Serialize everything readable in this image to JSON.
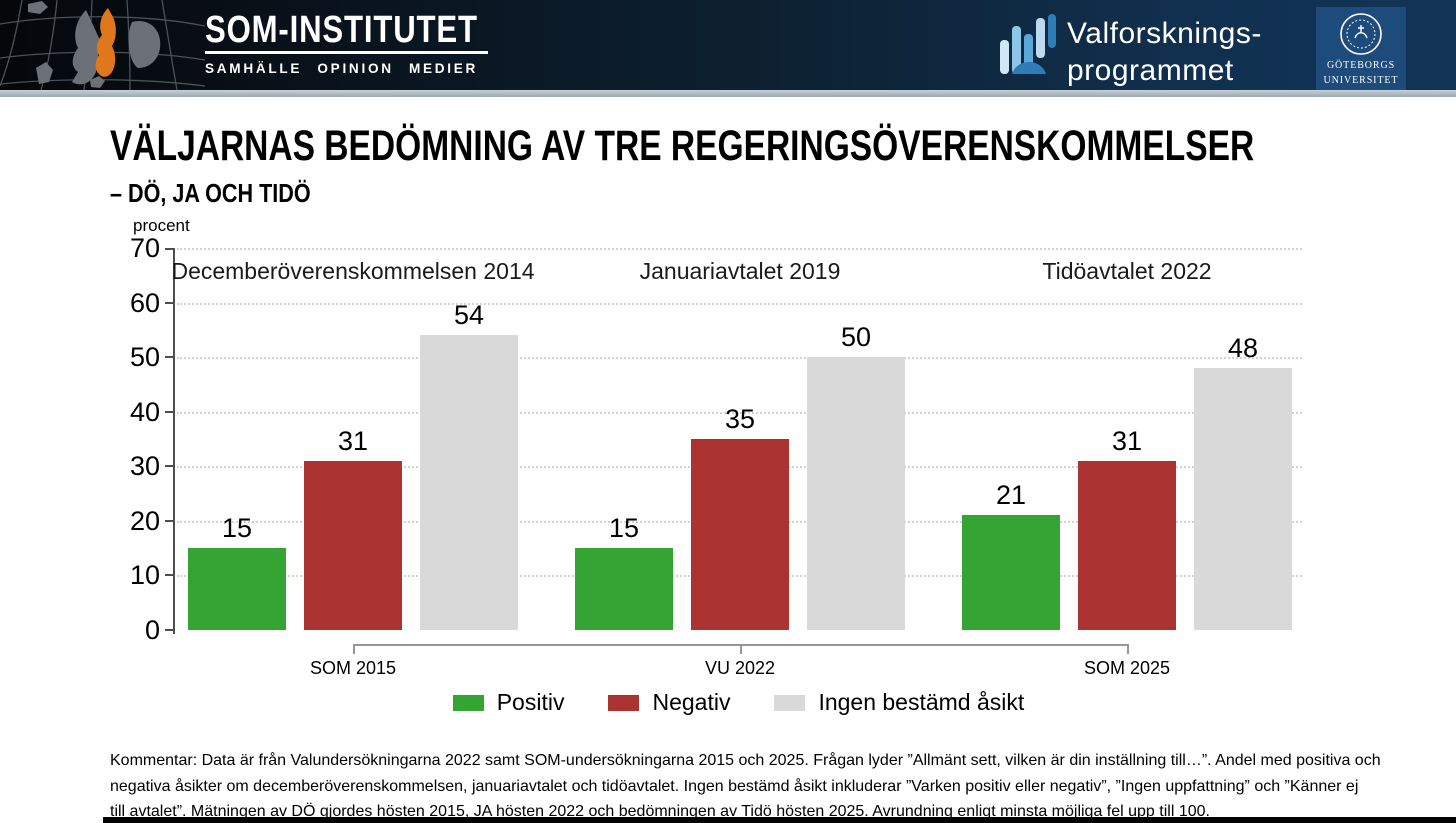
{
  "header": {
    "logo": {
      "title": "SOM-INSTITUTET",
      "subtitle": "SAMHÄLLE OPINION MEDIER"
    },
    "program": {
      "line1": "Valforsknings-",
      "line2": "programmet"
    },
    "university": {
      "line1": "GÖTEBORGS",
      "line2": "UNIVERSITET"
    }
  },
  "title": {
    "main": "VÄLJARNAS BEDÖMNING AV TRE REGERINGSÖVERENSKOMMELSER",
    "subtitle": "– DÖ, JA OCH TIDÖ"
  },
  "chart_data": {
    "type": "bar",
    "unit_label": "procent",
    "ylim": [
      0,
      70
    ],
    "yticks": [
      0,
      10,
      20,
      30,
      40,
      50,
      60,
      70
    ],
    "grid": "dotted horizontal gridlines at every 10",
    "data_labels": true,
    "legend_position": "bottom",
    "groups": [
      {
        "title": "Decemberöverenskommelsen 2014",
        "axis_label": "SOM 2015"
      },
      {
        "title": "Januariavtalet 2019",
        "axis_label": "VU 2022"
      },
      {
        "title": "Tidöavtalet 2022",
        "axis_label": "SOM 2025"
      }
    ],
    "series": [
      {
        "name": "Positiv",
        "color": "#34a533",
        "values": [
          15,
          15,
          21
        ]
      },
      {
        "name": "Negativ",
        "color": "#ab3332",
        "values": [
          31,
          35,
          31
        ]
      },
      {
        "name": "Ingen bestämd åsikt",
        "color": "#d9d9d9",
        "values": [
          54,
          50,
          48
        ]
      }
    ]
  },
  "footer": {
    "lines": [
      "Kommentar: Data är från Valundersökningarna 2022 samt SOM-undersökningarna 2015 och 2025. Frågan lyder ”Allmänt sett, vilken är din inställning till…”. Andel med positiva och",
      "negativa åsikter om decemberöverenskommelsen, januariavtalet och tidöavtalet. Ingen bestämd åsikt inkluderar ”Varken positiv eller negativ”, ”Ingen uppfattning” och ”Känner ej",
      "till avtalet”. Mätningen av DÖ gjordes hösten 2015, JA hösten 2022 och bedömningen av Tidö hösten 2025. Avrundning enligt minsta möjliga fel upp till 100."
    ]
  },
  "colors": {
    "header_navy": "#123455",
    "sweden_orange": "#e0771d",
    "gu_panel_blue": "#1d4b7c",
    "positiv_green": "#34a533",
    "negativ_red": "#ab3332",
    "neutral_grey": "#d9d9d9"
  }
}
